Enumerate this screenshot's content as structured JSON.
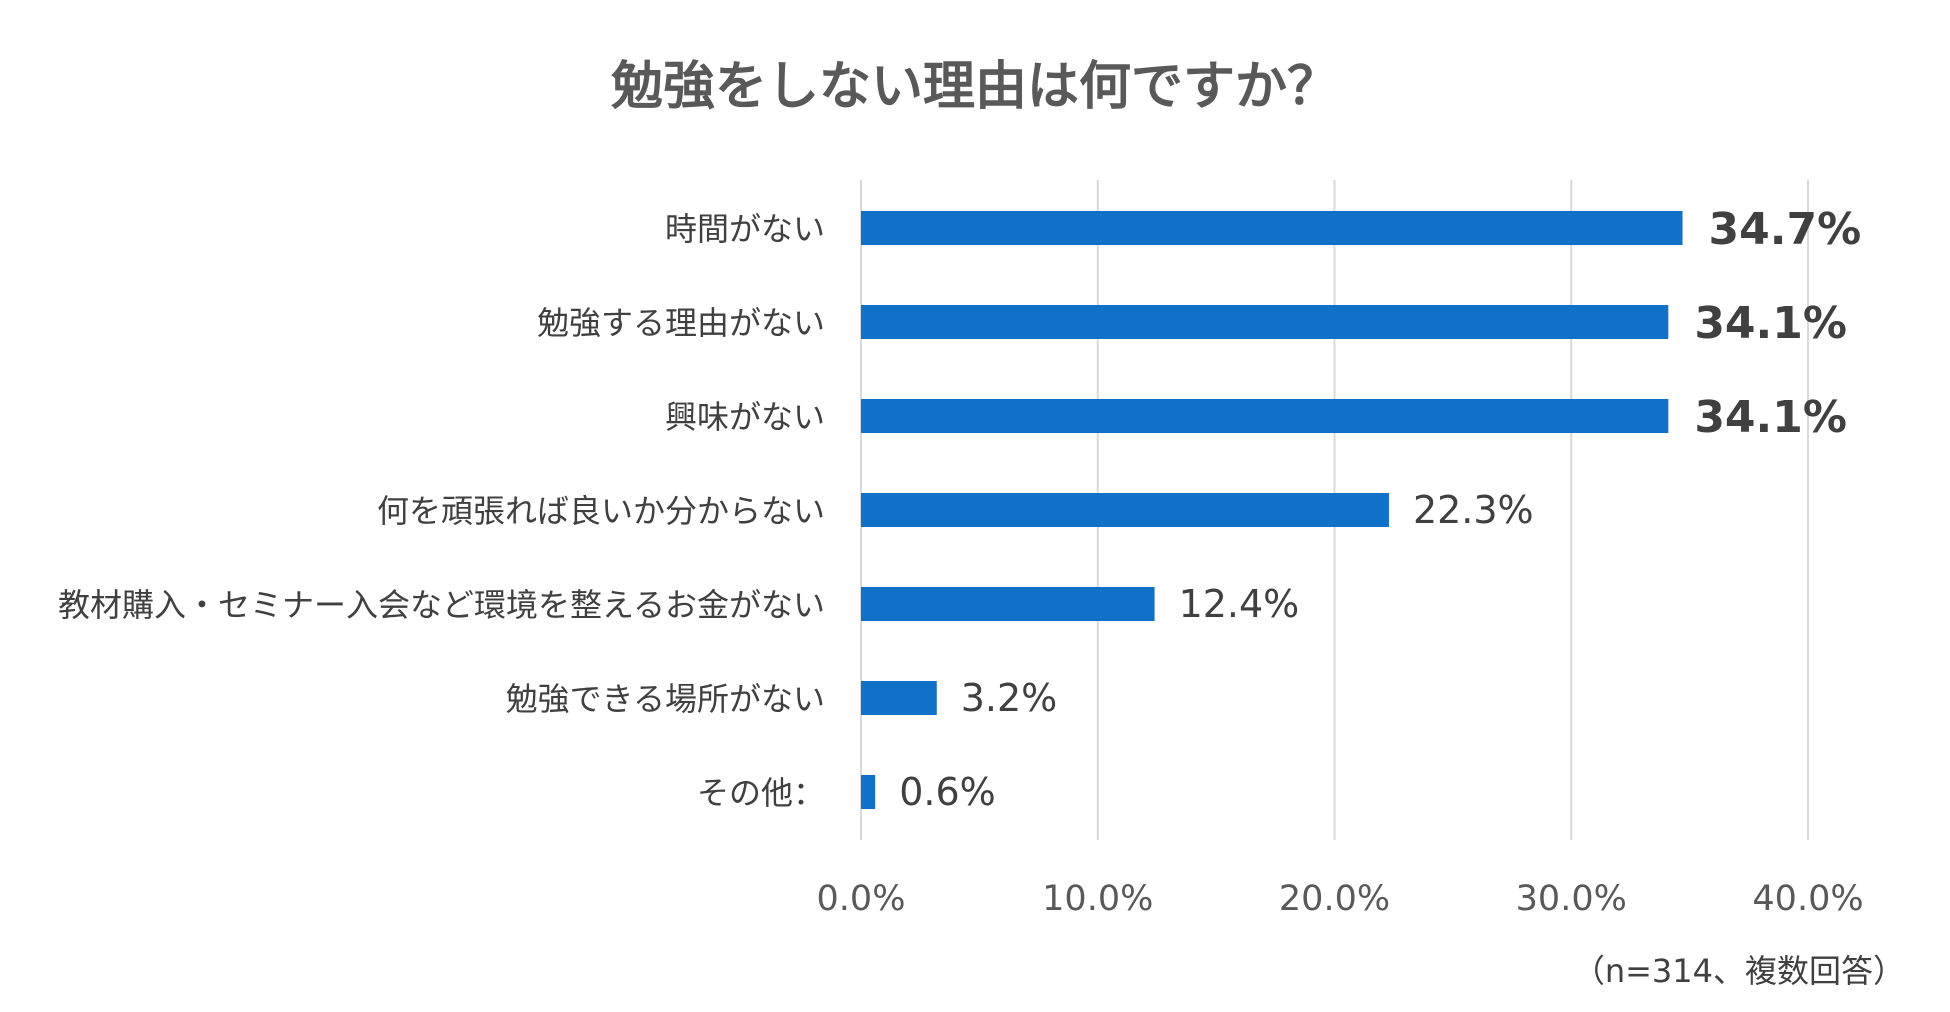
{
  "chart_data": {
    "type": "bar",
    "orientation": "horizontal",
    "title": "勉強をしない理由は何ですか？",
    "note": "（n=314、複数回答）",
    "categories": [
      "時間がない",
      "勉強する理由がない",
      "興味がない",
      "何を頑張れば良いか分からない",
      "教材購入・セミナー入会など環境を整えるお金がない",
      "勉強できる場所がない",
      "その他："
    ],
    "values": [
      34.7,
      34.1,
      34.1,
      22.3,
      12.4,
      3.2,
      0.6
    ],
    "value_labels": [
      "34.7%",
      "34.1%",
      "34.1%",
      "22.3%",
      "12.4%",
      "3.2%",
      "0.6%"
    ],
    "highlighted": [
      true,
      true,
      true,
      false,
      false,
      false,
      false
    ],
    "xlim": [
      0,
      40
    ],
    "xticks": [
      0,
      10,
      20,
      30,
      40
    ],
    "xtick_labels": [
      "0.0%",
      "10.0%",
      "20.0%",
      "30.0%",
      "40.0%"
    ],
    "grid": true,
    "legend": "none",
    "bar_color": "#1170c8"
  }
}
